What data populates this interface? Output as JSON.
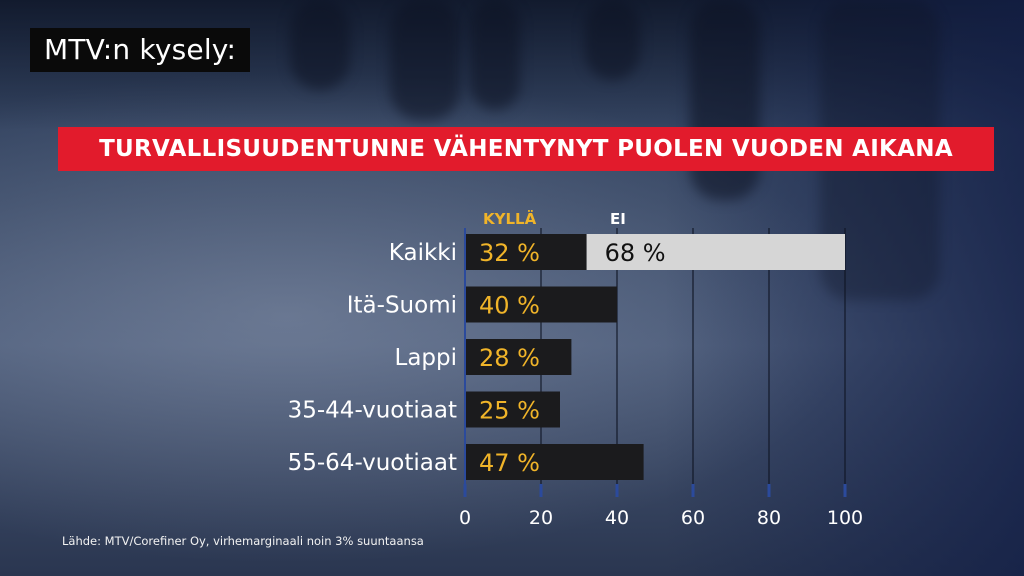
{
  "badge": "MTV:n kysely:",
  "headline": "TURVALLISUUDENTUNNE VÄHENTYNYT PUOLEN VUODEN AIKANA",
  "source": "Lähde: MTV/Corefiner Oy, virhemarginaali noin 3% suuntaansa",
  "colors": {
    "headline_bg": "#e21b2c",
    "kylla_bar": "#1b1b1d",
    "ei_bar": "#d6d6d6",
    "kylla_text": "#f0b429",
    "ei_text": "#111111",
    "label_text": "#ffffff"
  },
  "chart_data": {
    "type": "bar",
    "orientation": "horizontal",
    "stacked": true,
    "legend": [
      "KYLLÄ",
      "EI"
    ],
    "categories": [
      "Kaikki",
      "Itä-Suomi",
      "Lappi",
      "35-44-vuotiaat",
      "55-64-vuotiaat"
    ],
    "series": [
      {
        "name": "KYLLÄ",
        "values": [
          32,
          40,
          28,
          25,
          47
        ],
        "labels": [
          "32 %",
          "40 %",
          "28 %",
          "25 %",
          "47 %"
        ]
      },
      {
        "name": "EI",
        "values": [
          68,
          null,
          null,
          null,
          null
        ],
        "labels": [
          "68 %",
          "",
          "",
          "",
          ""
        ]
      }
    ],
    "xlim": [
      0,
      100
    ],
    "xticks": [
      0,
      20,
      40,
      60,
      80,
      100
    ],
    "xtick_labels": [
      "0",
      "20",
      "40",
      "60",
      "80",
      "100"
    ],
    "grid": "vertical"
  }
}
